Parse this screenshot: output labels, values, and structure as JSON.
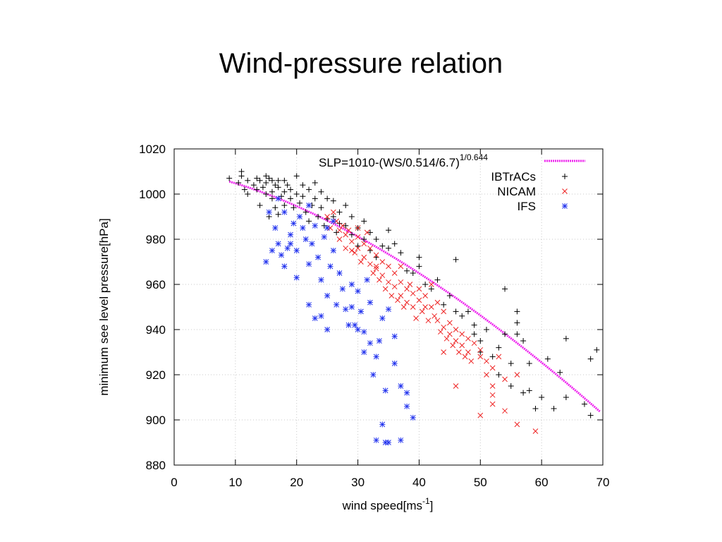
{
  "slide": {
    "title": "Wind-pressure relation"
  },
  "chart_data": {
    "type": "scatter",
    "xlabel": "wind speed[ms",
    "xlabel_sup": "-1",
    "xlabel_suffix": "]",
    "ylabel": "minimum see level pressure[hPa]",
    "xlim": [
      0,
      70
    ],
    "ylim": [
      880,
      1020
    ],
    "xticks": [
      0,
      10,
      20,
      30,
      40,
      50,
      60,
      70
    ],
    "yticks": [
      880,
      900,
      920,
      940,
      960,
      980,
      1000,
      1020
    ],
    "grid": true,
    "legend_position": "top-right",
    "fit_line": {
      "label": "SLP=1010-(WS/0.514/6.7)",
      "label_sup": "1/0.644",
      "color": "#ee22ee",
      "x_range": [
        9,
        69.5
      ]
    },
    "series": [
      {
        "name": "IBTrACs",
        "marker": "plus",
        "color": "#000000",
        "points": [
          [
            9,
            1007
          ],
          [
            10.5,
            1005
          ],
          [
            11,
            1010
          ],
          [
            11,
            1008
          ],
          [
            11.5,
            1002
          ],
          [
            12,
            1006
          ],
          [
            12,
            1000
          ],
          [
            13,
            1004
          ],
          [
            13.5,
            1007
          ],
          [
            13.5,
            1002
          ],
          [
            14,
            1006
          ],
          [
            14,
            995
          ],
          [
            14.5,
            1003
          ],
          [
            15,
            1008
          ],
          [
            15,
            1005
          ],
          [
            15,
            1000
          ],
          [
            15.5,
            1007
          ],
          [
            15.5,
            990
          ],
          [
            16,
            1006
          ],
          [
            16,
            1001
          ],
          [
            16,
            998
          ],
          [
            16.5,
            1004
          ],
          [
            16.5,
            994
          ],
          [
            17,
            1006
          ],
          [
            17,
            1003
          ],
          [
            17,
            991
          ],
          [
            17.5,
            999
          ],
          [
            18,
            1006
          ],
          [
            18,
            1001
          ],
          [
            18,
            995
          ],
          [
            18.5,
            1004
          ],
          [
            19,
            1002
          ],
          [
            19,
            998
          ],
          [
            19.5,
            994
          ],
          [
            20,
            1008
          ],
          [
            20,
            1000
          ],
          [
            20.5,
            996
          ],
          [
            21,
            1004
          ],
          [
            21,
            999
          ],
          [
            21.5,
            992
          ],
          [
            22,
            1002
          ],
          [
            22,
            988
          ],
          [
            22.5,
            995
          ],
          [
            23,
            1005
          ],
          [
            23,
            998
          ],
          [
            23.5,
            990
          ],
          [
            24,
            1001
          ],
          [
            24,
            994
          ],
          [
            24.5,
            986
          ],
          [
            25,
            998
          ],
          [
            25,
            989
          ],
          [
            26,
            997
          ],
          [
            26,
            990
          ],
          [
            26.5,
            983
          ],
          [
            27,
            992
          ],
          [
            27,
            987
          ],
          [
            28,
            995
          ],
          [
            28,
            986
          ],
          [
            29,
            990
          ],
          [
            29,
            982
          ],
          [
            30,
            985
          ],
          [
            30,
            977
          ],
          [
            31,
            988
          ],
          [
            31,
            980
          ],
          [
            32,
            983
          ],
          [
            32,
            975
          ],
          [
            33,
            980
          ],
          [
            33,
            972
          ],
          [
            34,
            977
          ],
          [
            35,
            984
          ],
          [
            35,
            976
          ],
          [
            36,
            978
          ],
          [
            37,
            974
          ],
          [
            38,
            966
          ],
          [
            39,
            965
          ],
          [
            40,
            972
          ],
          [
            40,
            968
          ],
          [
            41,
            960
          ],
          [
            42,
            958
          ],
          [
            43,
            962
          ],
          [
            44,
            951
          ],
          [
            45,
            955
          ],
          [
            46,
            971
          ],
          [
            46,
            948
          ],
          [
            47,
            946
          ],
          [
            48,
            948
          ],
          [
            49,
            942
          ],
          [
            49,
            938
          ],
          [
            50,
            935
          ],
          [
            50,
            930
          ],
          [
            51,
            940
          ],
          [
            52,
            928
          ],
          [
            53,
            932
          ],
          [
            53,
            920
          ],
          [
            54,
            958
          ],
          [
            54,
            938
          ],
          [
            55,
            925
          ],
          [
            55,
            915
          ],
          [
            56,
            948
          ],
          [
            56,
            943
          ],
          [
            56,
            938
          ],
          [
            57,
            935
          ],
          [
            57,
            912
          ],
          [
            58,
            925
          ],
          [
            58,
            913
          ],
          [
            59,
            905
          ],
          [
            60,
            910
          ],
          [
            61,
            927
          ],
          [
            62,
            905
          ],
          [
            63,
            921
          ],
          [
            64,
            936
          ],
          [
            64,
            910
          ],
          [
            67,
            907
          ],
          [
            68,
            902
          ],
          [
            68,
            927
          ],
          [
            69,
            931
          ]
        ]
      },
      {
        "name": "NICAM",
        "marker": "x",
        "color": "#ee2222",
        "points": [
          [
            25,
            990
          ],
          [
            25.5,
            985
          ],
          [
            26,
            992
          ],
          [
            26.5,
            988
          ],
          [
            27,
            984
          ],
          [
            27,
            980
          ],
          [
            27.5,
            986
          ],
          [
            28,
            982
          ],
          [
            28,
            976
          ],
          [
            28.5,
            984
          ],
          [
            29,
            979
          ],
          [
            29.5,
            974
          ],
          [
            30,
            981
          ],
          [
            30,
            976
          ],
          [
            30.5,
            970
          ],
          [
            31,
            978
          ],
          [
            31,
            972
          ],
          [
            31.5,
            983
          ],
          [
            32,
            976
          ],
          [
            32,
            969
          ],
          [
            32.5,
            965
          ],
          [
            33,
            973
          ],
          [
            33,
            967
          ],
          [
            33.5,
            962
          ],
          [
            34,
            970
          ],
          [
            34,
            964
          ],
          [
            34.5,
            958
          ],
          [
            35,
            968
          ],
          [
            35,
            961
          ],
          [
            35.5,
            955
          ],
          [
            36,
            965
          ],
          [
            36,
            959
          ],
          [
            36.5,
            953
          ],
          [
            37,
            961
          ],
          [
            37,
            955
          ],
          [
            37.5,
            950
          ],
          [
            38,
            958
          ],
          [
            38,
            952
          ],
          [
            38.5,
            960
          ],
          [
            39,
            956
          ],
          [
            39,
            950
          ],
          [
            39.5,
            945
          ],
          [
            40,
            958
          ],
          [
            40,
            953
          ],
          [
            40.5,
            948
          ],
          [
            41,
            955
          ],
          [
            41,
            950
          ],
          [
            41.5,
            944
          ],
          [
            42,
            960
          ],
          [
            42,
            950
          ],
          [
            42.5,
            946
          ],
          [
            43,
            952
          ],
          [
            43,
            944
          ],
          [
            43.5,
            939
          ],
          [
            44,
            948
          ],
          [
            44,
            941
          ],
          [
            44.5,
            936
          ],
          [
            45,
            943
          ],
          [
            45,
            938
          ],
          [
            45.5,
            933
          ],
          [
            46,
            940
          ],
          [
            46,
            935
          ],
          [
            46.5,
            930
          ],
          [
            47,
            938
          ],
          [
            47,
            933
          ],
          [
            47.5,
            928
          ],
          [
            48,
            936
          ],
          [
            48,
            930
          ],
          [
            48.5,
            926
          ],
          [
            49,
            934
          ],
          [
            50,
            931
          ],
          [
            50,
            928
          ],
          [
            51,
            926
          ],
          [
            52,
            923
          ],
          [
            52,
            915
          ],
          [
            44,
            930
          ],
          [
            46,
            915
          ],
          [
            50,
            902
          ],
          [
            51,
            920
          ],
          [
            52,
            911
          ],
          [
            52,
            907
          ],
          [
            53,
            928
          ],
          [
            54,
            918
          ],
          [
            54,
            904
          ],
          [
            56,
            898
          ],
          [
            59,
            895
          ],
          [
            56,
            920
          ],
          [
            33,
            968
          ],
          [
            30,
            985
          ],
          [
            29,
            975
          ],
          [
            37,
            968
          ]
        ]
      },
      {
        "name": "IFS",
        "marker": "star",
        "color": "#2233ee",
        "points": [
          [
            15,
            970
          ],
          [
            15.5,
            992
          ],
          [
            16,
            975
          ],
          [
            16.5,
            985
          ],
          [
            17,
            978
          ],
          [
            17.5,
            973
          ],
          [
            18,
            968
          ],
          [
            18.5,
            976
          ],
          [
            18,
            992
          ],
          [
            19,
            982
          ],
          [
            19.5,
            987
          ],
          [
            20,
            963
          ],
          [
            20,
            975
          ],
          [
            20.5,
            990
          ],
          [
            21,
            985
          ],
          [
            21.5,
            980
          ],
          [
            22,
            951
          ],
          [
            22,
            969
          ],
          [
            22.5,
            978
          ],
          [
            23,
            986
          ],
          [
            23.5,
            972
          ],
          [
            24,
            946
          ],
          [
            24,
            962
          ],
          [
            24.5,
            981
          ],
          [
            25,
            940
          ],
          [
            25,
            955
          ],
          [
            25.5,
            968
          ],
          [
            26,
            975
          ],
          [
            26.5,
            951
          ],
          [
            27,
            965
          ],
          [
            27.5,
            958
          ],
          [
            28,
            949
          ],
          [
            28.5,
            942
          ],
          [
            29,
            950
          ],
          [
            29.5,
            942
          ],
          [
            30,
            957
          ],
          [
            30,
            940
          ],
          [
            30.5,
            948
          ],
          [
            31,
            939
          ],
          [
            31.5,
            962
          ],
          [
            32,
            934
          ],
          [
            32,
            952
          ],
          [
            32.5,
            920
          ],
          [
            33,
            928
          ],
          [
            33.5,
            935
          ],
          [
            34,
            898
          ],
          [
            34,
            945
          ],
          [
            34.5,
            913
          ],
          [
            35,
            949
          ],
          [
            35,
            890
          ],
          [
            36,
            925
          ],
          [
            37,
            915
          ],
          [
            37,
            891
          ],
          [
            38,
            906
          ],
          [
            38,
            912
          ],
          [
            39,
            901
          ],
          [
            33,
            891
          ],
          [
            34.5,
            890
          ],
          [
            36,
            937
          ],
          [
            31,
            930
          ],
          [
            23,
            945
          ],
          [
            26,
            988
          ],
          [
            29,
            960
          ],
          [
            22,
            995
          ],
          [
            17,
            998
          ],
          [
            25,
            985
          ],
          [
            19,
            978
          ]
        ]
      }
    ]
  }
}
